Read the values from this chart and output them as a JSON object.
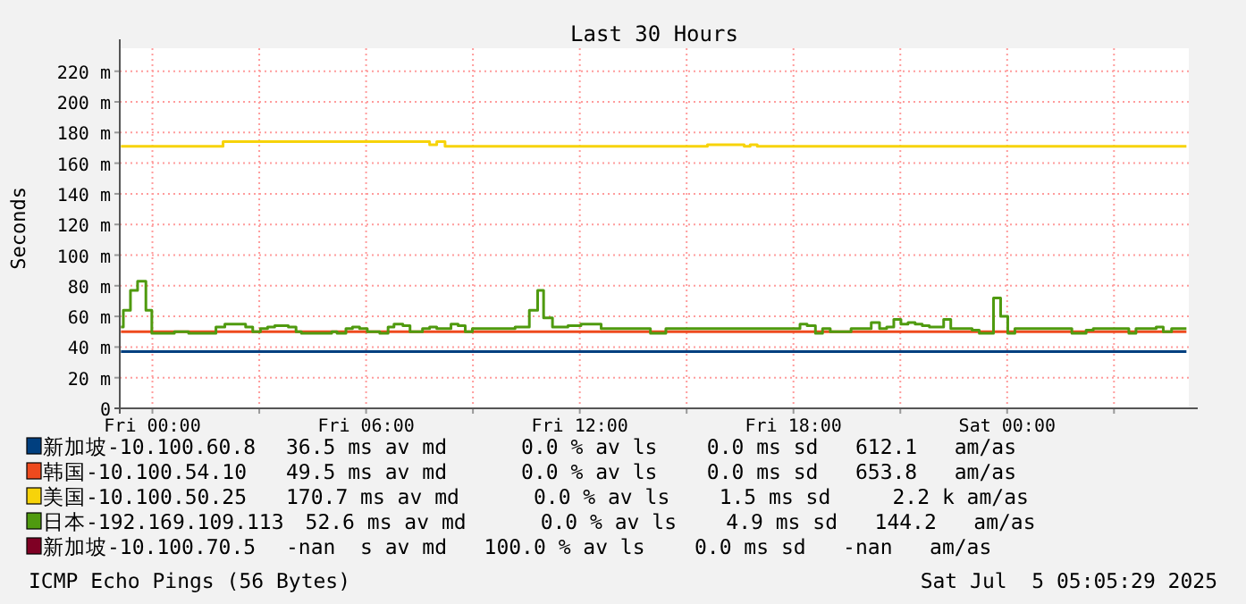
{
  "chart_data": {
    "type": "step",
    "title": "Last 30 Hours",
    "ylabel": "Seconds",
    "xlim": [
      "2025-07-03T23:05",
      "2025-07-05T05:06"
    ],
    "xticks": [
      {
        "value": "2025-07-04T00:00",
        "label": "Fri 00:00"
      },
      {
        "value": "2025-07-04T03:00",
        "label": null
      },
      {
        "value": "2025-07-04T06:00",
        "label": "Fri 06:00"
      },
      {
        "value": "2025-07-04T09:00",
        "label": null
      },
      {
        "value": "2025-07-04T12:00",
        "label": "Fri 12:00"
      },
      {
        "value": "2025-07-04T15:00",
        "label": null
      },
      {
        "value": "2025-07-04T18:00",
        "label": "Fri 18:00"
      },
      {
        "value": "2025-07-04T21:00",
        "label": null
      },
      {
        "value": "2025-07-05T00:00",
        "label": "Sat 00:00"
      },
      {
        "value": "2025-07-05T03:00",
        "label": null
      }
    ],
    "ylim": [
      0,
      235
    ],
    "yticks": [
      0,
      {
        "value": 20,
        "label": "20 m"
      },
      {
        "value": 40,
        "label": "40 m"
      },
      {
        "value": 60,
        "label": "60 m"
      },
      {
        "value": 80,
        "label": "80 m"
      },
      {
        "value": 100,
        "label": "100 m"
      },
      {
        "value": 120,
        "label": "120 m"
      },
      {
        "value": 140,
        "label": "140 m"
      },
      {
        "value": 160,
        "label": "160 m"
      },
      {
        "value": 180,
        "label": "180 m"
      },
      {
        "value": 200,
        "label": "200 m"
      },
      {
        "value": 220,
        "label": "220 m"
      }
    ],
    "grid": true,
    "legend": "bottom",
    "series": [
      {
        "name": "新加坡-10.100.60.8",
        "color": "#003f7f",
        "x": [
          "2025-07-03T23:07",
          "2025-07-05T05:02"
        ],
        "values": [
          37,
          37
        ]
      },
      {
        "name": "韩国-10.100.54.10",
        "color": "#ee4a1e",
        "x": [
          "2025-07-03T23:07",
          "2025-07-05T05:02"
        ],
        "values": [
          50,
          50
        ]
      },
      {
        "name": "美国-10.100.50.25",
        "color": "#f7d30a",
        "x": [
          "2025-07-03T23:07",
          "2025-07-04T01:59",
          "2025-07-04T07:47",
          "2025-07-04T07:59",
          "2025-07-04T08:13",
          "2025-07-04T15:35",
          "2025-07-04T16:37",
          "2025-07-04T16:47",
          "2025-07-04T16:59",
          "2025-07-05T05:02"
        ],
        "values": [
          171,
          174,
          172,
          174,
          171,
          172,
          171,
          172,
          171,
          171
        ]
      },
      {
        "name": "日本-192.169.109.113",
        "color": "#4f9a0f",
        "x": [
          "2025-07-03T23:07",
          "2025-07-03T23:11",
          "2025-07-03T23:23",
          "2025-07-03T23:35",
          "2025-07-03T23:49",
          "2025-07-03T23:59",
          "2025-07-04T00:37",
          "2025-07-04T01:01",
          "2025-07-04T01:47",
          "2025-07-04T02:02",
          "2025-07-04T02:37",
          "2025-07-04T02:49",
          "2025-07-04T03:02",
          "2025-07-04T03:14",
          "2025-07-04T03:26",
          "2025-07-04T03:49",
          "2025-07-04T04:02",
          "2025-07-04T04:11",
          "2025-07-04T05:02",
          "2025-07-04T05:11",
          "2025-07-04T05:26",
          "2025-07-04T05:37",
          "2025-07-04T05:49",
          "2025-07-04T06:02",
          "2025-07-04T06:23",
          "2025-07-04T06:37",
          "2025-07-04T06:47",
          "2025-07-04T07:02",
          "2025-07-04T07:14",
          "2025-07-04T07:35",
          "2025-07-04T07:47",
          "2025-07-04T07:59",
          "2025-07-04T08:23",
          "2025-07-04T08:35",
          "2025-07-04T08:47",
          "2025-07-04T08:59",
          "2025-07-04T10:11",
          "2025-07-04T10:35",
          "2025-07-04T10:49",
          "2025-07-04T10:59",
          "2025-07-04T11:14",
          "2025-07-04T11:40",
          "2025-07-04T12:02",
          "2025-07-04T12:36",
          "2025-07-04T13:59",
          "2025-07-04T14:25",
          "2025-07-04T18:11",
          "2025-07-04T18:23",
          "2025-07-04T18:37",
          "2025-07-04T18:49",
          "2025-07-04T19:02",
          "2025-07-04T19:37",
          "2025-07-04T20:11",
          "2025-07-04T20:25",
          "2025-07-04T20:37",
          "2025-07-04T20:49",
          "2025-07-04T21:01",
          "2025-07-04T21:13",
          "2025-07-04T21:25",
          "2025-07-04T21:37",
          "2025-07-04T21:49",
          "2025-07-04T22:13",
          "2025-07-04T22:25",
          "2025-07-04T23:01",
          "2025-07-04T23:13",
          "2025-07-04T23:37",
          "2025-07-04T23:49",
          "2025-07-05T00:01",
          "2025-07-05T00:13",
          "2025-07-05T01:49",
          "2025-07-05T02:13",
          "2025-07-05T02:25",
          "2025-07-05T03:25",
          "2025-07-05T03:37",
          "2025-07-05T04:11",
          "2025-07-05T04:23",
          "2025-07-05T04:37",
          "2025-07-05T05:02"
        ],
        "values": [
          53,
          64,
          77,
          83,
          64,
          49,
          50,
          49,
          53,
          55,
          53,
          50,
          52,
          53,
          54,
          53,
          50,
          49,
          50,
          49,
          52,
          53,
          52,
          50,
          49,
          53,
          55,
          54,
          50,
          52,
          53,
          52,
          55,
          54,
          50,
          52,
          53,
          64,
          77,
          59,
          53,
          54,
          55,
          52,
          49,
          52,
          55,
          54,
          49,
          52,
          50,
          52,
          56,
          52,
          53,
          58,
          55,
          56,
          55,
          54,
          53,
          58,
          52,
          51,
          49,
          72,
          60,
          49,
          52,
          49,
          51,
          52,
          49,
          52,
          53,
          50,
          52,
          52
        ]
      },
      {
        "name": "新加坡-10.100.70.5",
        "color": "#7f0024"
      }
    ],
    "annotations": [
      "36.5 ms av md      0.0 % av ls    0.0 ms sd   612.1   am/as",
      "49.5 ms av md      0.0 % av ls    0.0 ms sd   653.8   am/as",
      "170.7 ms av md      0.0 % av ls    1.5 ms sd     2.2 k am/as",
      "52.6 ms av md      0.0 % av ls    4.9 ms sd   144.2   am/as",
      "-nan  s av md   100.0 % av ls    0.0 ms sd   -nan   am/as",
      "ICMP Echo Pings (56 Bytes)",
      "Sat Jul  5 05:05:29 2025"
    ]
  }
}
